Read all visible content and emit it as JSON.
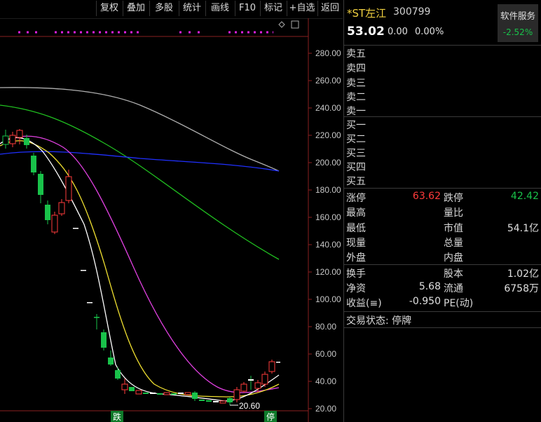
{
  "toolbar": {
    "items": [
      "复权",
      "叠加",
      "多股",
      "统计",
      "画线",
      "F10",
      "标记",
      "+自选",
      "返回"
    ]
  },
  "chart": {
    "price_axis": [
      "280.00",
      "260.00",
      "240.00",
      "220.00",
      "200.00",
      "180.00",
      "160.00",
      "140.00",
      "120.00",
      "100.00",
      "80.00",
      "60.00",
      "40.00",
      "20.00"
    ],
    "low_marker": "20.60",
    "event_labels": [
      "跌",
      "停"
    ]
  },
  "stock": {
    "name": "*ST左江",
    "code": "300799",
    "price": "53.02",
    "change": "0.00",
    "change_pct": "0.00%"
  },
  "service": {
    "label": "软件服务",
    "value": "-2.52%"
  },
  "order_book": {
    "sell": [
      "卖五",
      "卖四",
      "卖三",
      "卖二",
      "卖一"
    ],
    "buy": [
      "买一",
      "买二",
      "买三",
      "买四",
      "买五"
    ]
  },
  "quote": {
    "limit_up_label": "涨停",
    "limit_up": "63.62",
    "limit_down_label": "跌停",
    "limit_down": "42.42",
    "high_label": "最高",
    "vol_ratio_label": "量比",
    "low_label": "最低",
    "mkt_cap_label": "市值",
    "mkt_cap": "54.1亿",
    "cur_vol_label": "现量",
    "total_vol_label": "总量",
    "outer_label": "外盘",
    "inner_label": "内盘"
  },
  "fundamentals": {
    "turnover_label": "换手",
    "share_cap_label": "股本",
    "share_cap": "1.02亿",
    "net_asset_label": "净资",
    "net_asset": "5.68",
    "float_label": "流通",
    "float_cap": "6758万",
    "eps_label": "收益(≡)",
    "eps": "-0.950",
    "pe_label": "PE(动)"
  },
  "status": {
    "text": "交易状态: 停牌"
  },
  "colors": {
    "up": "#ff3b3b",
    "down": "#19c24a",
    "ma5": "#ffffff",
    "ma10": "#f0e030",
    "ma20": "#e040e0",
    "ma60": "#20c020",
    "ma120": "#2030ff",
    "ma250": "#b0b0b0"
  }
}
